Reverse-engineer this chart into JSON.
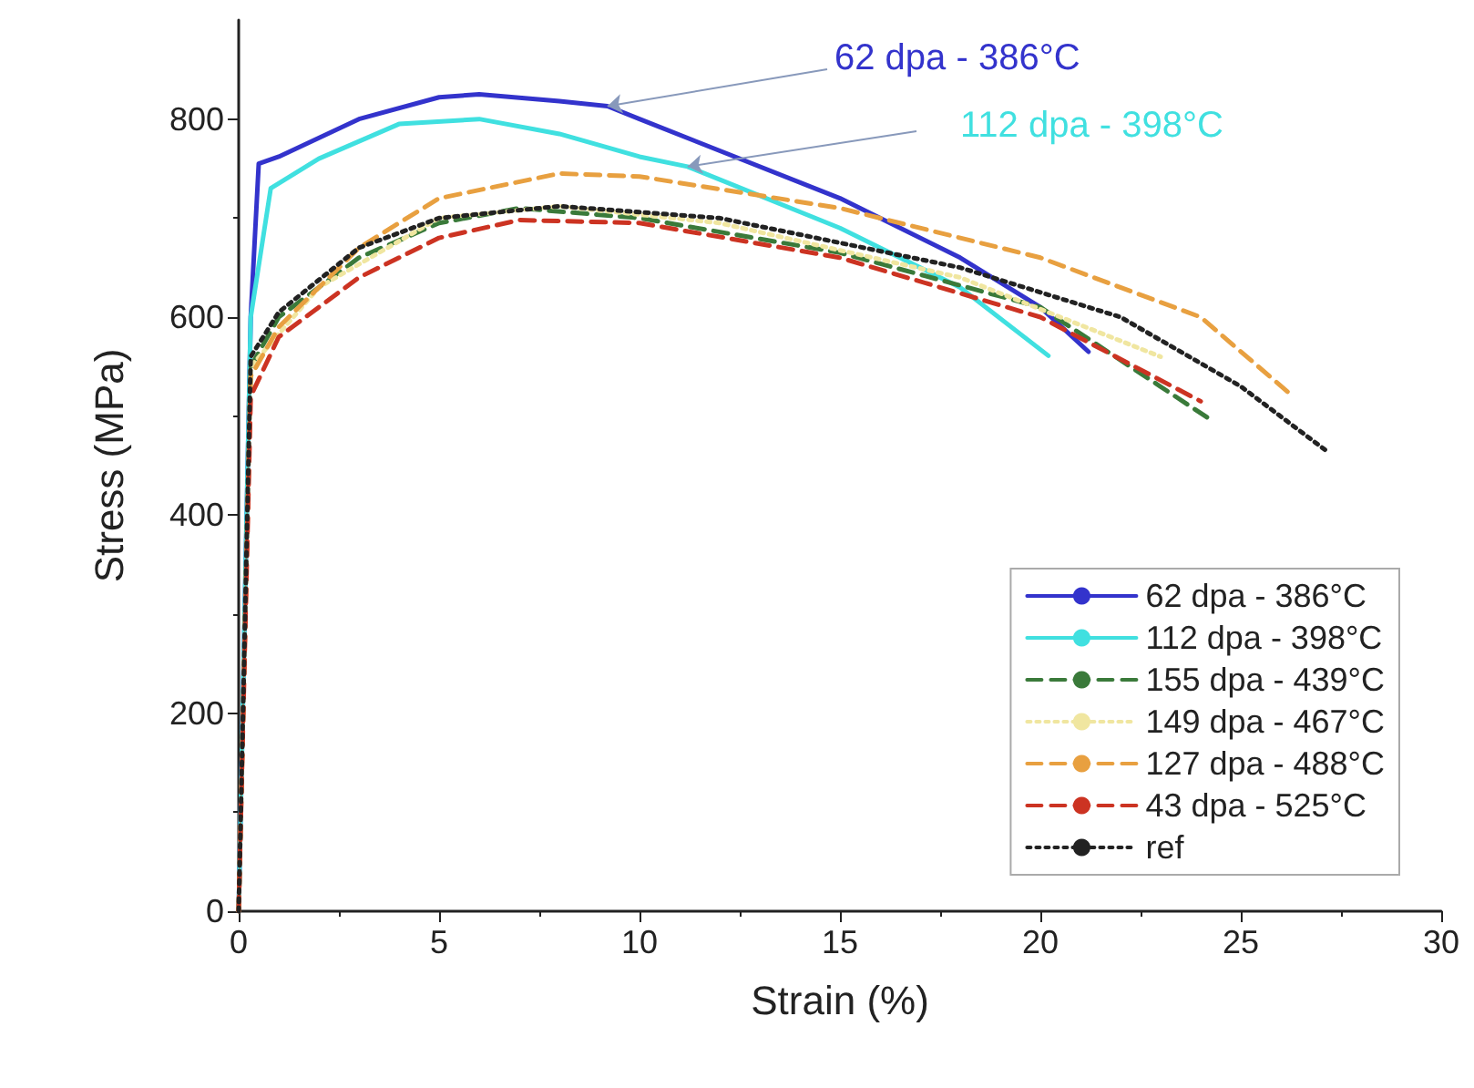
{
  "chart_data": {
    "type": "line",
    "xlabel": "Strain (%)",
    "ylabel": "Stress (MPa)",
    "xlim": [
      0,
      30
    ],
    "xticks": [
      0,
      5,
      10,
      15,
      20,
      25,
      30
    ],
    "ylim": [
      0,
      900
    ],
    "yticks": [
      0,
      200,
      400,
      600,
      800
    ],
    "grid": false,
    "legend": "bottom right",
    "marker": "none",
    "annotations": [
      {
        "text": "62 dpa - 386°C",
        "x": 9.2,
        "y": 813
      },
      {
        "text": "112 dpa - 398°C",
        "x": 11.2,
        "y": 752
      }
    ],
    "series": [
      {
        "name": "62 dpa - 386°C",
        "color": "#3333cc",
        "line_style": "solid",
        "x": [
          0,
          0.3,
          0.5,
          1,
          3,
          5,
          6,
          8,
          9.2,
          10,
          15,
          18,
          20,
          21.2
        ],
        "values": [
          0,
          600,
          755,
          762,
          800,
          822,
          825,
          818,
          813,
          800,
          720,
          660,
          610,
          565
        ]
      },
      {
        "name": "112 dpa - 398°C",
        "color": "#40e0e0",
        "line_style": "solid",
        "x": [
          0,
          0.3,
          0.8,
          2,
          4,
          6,
          8,
          10,
          11.2,
          15,
          18,
          20.2
        ],
        "values": [
          0,
          600,
          730,
          760,
          795,
          800,
          785,
          762,
          752,
          690,
          630,
          561
        ]
      },
      {
        "name": "155 dpa - 439°C",
        "color": "#3a7a3a",
        "line_style": "dashed",
        "x": [
          0,
          0.3,
          1,
          3,
          5,
          7,
          10,
          15,
          20,
          24.3
        ],
        "values": [
          0,
          550,
          600,
          660,
          695,
          710,
          700,
          665,
          610,
          495
        ]
      },
      {
        "name": "149 dpa - 467°C",
        "color": "#f0e6a0",
        "line_style": "dotted",
        "x": [
          0,
          0.3,
          2,
          5,
          8,
          12,
          18,
          23
        ],
        "values": [
          0,
          550,
          630,
          700,
          712,
          695,
          640,
          560
        ]
      },
      {
        "name": "127 dpa - 488°C",
        "color": "#e8a040",
        "line_style": "dashed",
        "x": [
          0,
          0.3,
          1,
          3,
          5,
          8,
          10,
          15,
          20,
          24,
          26.3
        ],
        "values": [
          0,
          540,
          590,
          670,
          720,
          745,
          742,
          710,
          660,
          600,
          520
        ]
      },
      {
        "name": "43 dpa - 525°C",
        "color": "#cc3322",
        "line_style": "dashed",
        "x": [
          0,
          0.3,
          1,
          3,
          5,
          7,
          10,
          15,
          20,
          24
        ],
        "values": [
          0,
          520,
          580,
          640,
          680,
          698,
          695,
          660,
          600,
          515
        ]
      },
      {
        "name": "ref",
        "color": "#222222",
        "line_style": "dotted",
        "x": [
          0,
          0.3,
          1,
          3,
          5,
          8,
          12,
          18,
          22,
          25,
          27.2
        ],
        "values": [
          0,
          560,
          605,
          670,
          700,
          712,
          700,
          650,
          600,
          530,
          463
        ]
      }
    ]
  }
}
